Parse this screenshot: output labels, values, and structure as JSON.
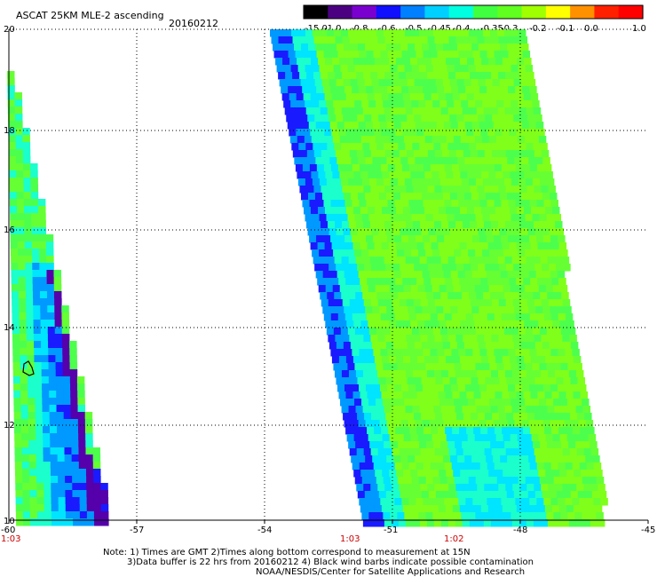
{
  "header": {
    "title": "ASCAT 25KM MLE-2 ascending",
    "date": "20160212"
  },
  "colorbar": {
    "labels": [
      "-15.0",
      "-1.0",
      "-0.8",
      "-0.6",
      "-0.5",
      "-0.45",
      "-0.4",
      "-0.35",
      "-0.3",
      "-0.2",
      "-0.1",
      "0.0",
      "1.0"
    ],
    "colors": [
      "#000000",
      "#4b0082",
      "#7a00d0",
      "#1010ff",
      "#0080ff",
      "#00d0ff",
      "#00ffe0",
      "#40ff40",
      "#60ff20",
      "#a0ff00",
      "#ffff00",
      "#ff9000",
      "#ff2000",
      "#ff0000"
    ]
  },
  "map": {
    "lat_ticks": [
      "20",
      "18",
      "16",
      "14",
      "12",
      "10"
    ],
    "lon_ticks": [
      "-60",
      "-57",
      "-54",
      "-51",
      "-48",
      "-45"
    ],
    "times": [
      "1:03",
      "1:03",
      "1:02"
    ]
  },
  "footer": {
    "line1": "Note: 1) Times are GMT 2)Times along bottom correspond to measurement at 15N",
    "line2": "3)Data buffer is 22 hrs from 20160212 4) Black wind barbs indicate possible contamination",
    "line3": "NOAA/NESDIS/Center for Satellite Applications and Research"
  }
}
